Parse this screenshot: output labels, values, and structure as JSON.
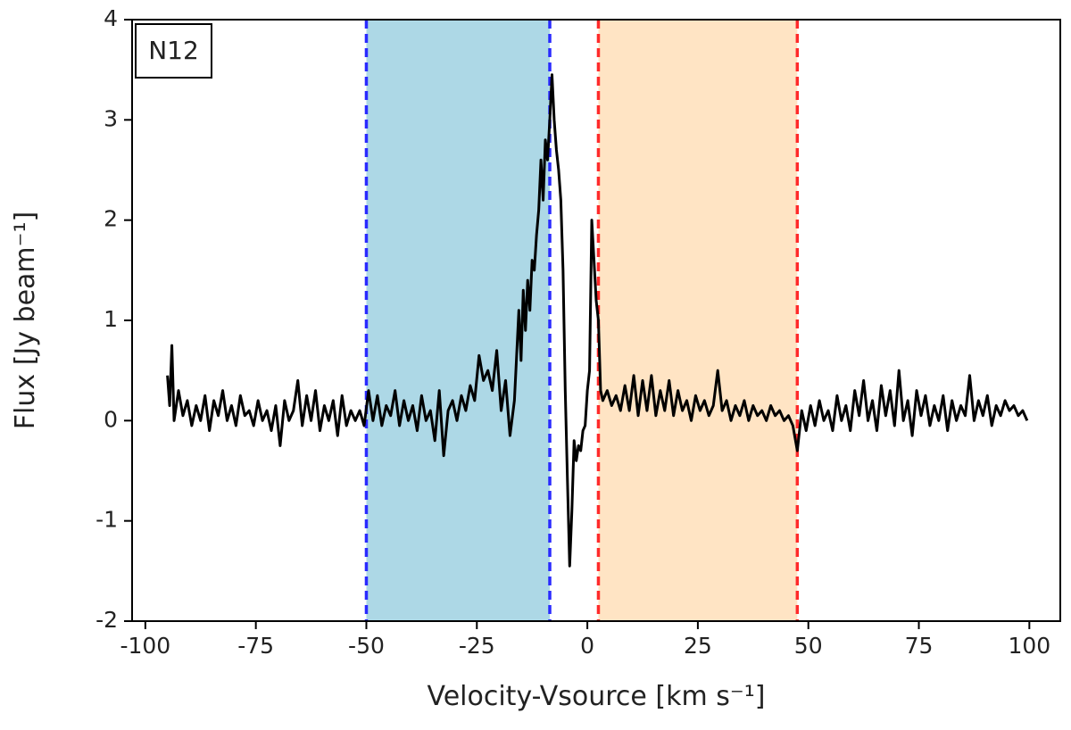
{
  "chart_data": {
    "type": "line",
    "annotation": "N12",
    "xlabel": "Velocity-Vsource [km s⁻¹]",
    "ylabel": "Flux [Jy beam⁻¹]",
    "xlim": [
      -103,
      107
    ],
    "ylim": [
      -2,
      4
    ],
    "xticks": [
      -100,
      -75,
      -50,
      -25,
      0,
      25,
      50,
      75,
      100
    ],
    "yticks": [
      -2,
      -1,
      0,
      1,
      2,
      3,
      4
    ],
    "grid": false,
    "spans": [
      {
        "xlim": [
          -50,
          -8.5
        ],
        "color": "#add8e6",
        "line_color": "#2a2aff"
      },
      {
        "xlim": [
          2.5,
          47.5
        ],
        "color": "#ffe4c4",
        "line_color": "#ff2a2a"
      }
    ],
    "x": [
      -95,
      -94.5,
      -94,
      -93.5,
      -92.5,
      -91.5,
      -90.5,
      -89.5,
      -88.5,
      -87.5,
      -86.5,
      -85.5,
      -84.5,
      -83.5,
      -82.5,
      -81.5,
      -80.5,
      -79.5,
      -78.5,
      -77.5,
      -76.5,
      -75.5,
      -74.5,
      -73.5,
      -72.5,
      -71.5,
      -70.5,
      -69.5,
      -68.5,
      -67.5,
      -66.5,
      -65.5,
      -64.5,
      -63.5,
      -62.5,
      -61.5,
      -60.5,
      -59.5,
      -58.5,
      -57.5,
      -56.5,
      -55.5,
      -54.5,
      -53.5,
      -52.5,
      -51.5,
      -50.5,
      -49.5,
      -48.5,
      -47.5,
      -46.5,
      -45.5,
      -44.5,
      -43.5,
      -42.5,
      -41.5,
      -40.5,
      -39.5,
      -38.5,
      -37.5,
      -36.5,
      -35.5,
      -34.5,
      -33.5,
      -32.5,
      -31.5,
      -30.5,
      -29.5,
      -28.5,
      -27.5,
      -26.5,
      -25.5,
      -24.5,
      -23.5,
      -22.5,
      -21.5,
      -20.5,
      -19.5,
      -18.5,
      -17.5,
      -16.5,
      -15.5,
      -15,
      -14.5,
      -14,
      -13.5,
      -13,
      -12.5,
      -12,
      -11.5,
      -11,
      -10.5,
      -10,
      -9.5,
      -9,
      -8.5,
      -8,
      -7.5,
      -7,
      -6.5,
      -6,
      -5.5,
      -5,
      -4.5,
      -4,
      -3.5,
      -3,
      -2.5,
      -2,
      -1.5,
      -1,
      -0.5,
      0,
      0.5,
      1,
      1.5,
      2,
      2.5,
      3,
      3.5,
      4.5,
      5.5,
      6.5,
      7.5,
      8.5,
      9.5,
      10.5,
      11.5,
      12.5,
      13.5,
      14.5,
      15.5,
      16.5,
      17.5,
      18.5,
      19.5,
      20.5,
      21.5,
      22.5,
      23.5,
      24.5,
      25.5,
      26.5,
      27.5,
      28.5,
      29.5,
      30.5,
      31.5,
      32.5,
      33.5,
      34.5,
      35.5,
      36.5,
      37.5,
      38.5,
      39.5,
      40.5,
      41.5,
      42.5,
      43.5,
      44.5,
      45.5,
      46.5,
      47.5,
      48.5,
      49.5,
      50.5,
      51.5,
      52.5,
      53.5,
      54.5,
      55.5,
      56.5,
      57.5,
      58.5,
      59.5,
      60.5,
      61.5,
      62.5,
      63.5,
      64.5,
      65.5,
      66.5,
      67.5,
      68.5,
      69.5,
      70.5,
      71.5,
      72.5,
      73.5,
      74.5,
      75.5,
      76.5,
      77.5,
      78.5,
      79.5,
      80.5,
      81.5,
      82.5,
      83.5,
      84.5,
      85.5,
      86.5,
      87.5,
      88.5,
      89.5,
      90.5,
      91.5,
      92.5,
      93.5,
      94.5,
      95.5,
      96.5,
      97.5,
      98.5,
      99.5
    ],
    "series": [
      {
        "color": "#000000",
        "values": [
          0.45,
          0.15,
          0.75,
          0.0,
          0.3,
          0.05,
          0.2,
          -0.05,
          0.15,
          0.0,
          0.25,
          -0.1,
          0.2,
          0.05,
          0.3,
          0.0,
          0.15,
          -0.05,
          0.25,
          0.05,
          0.1,
          -0.05,
          0.2,
          0.0,
          0.1,
          -0.1,
          0.15,
          -0.25,
          0.2,
          0.0,
          0.1,
          0.4,
          -0.05,
          0.25,
          0.0,
          0.3,
          -0.1,
          0.15,
          0.0,
          0.2,
          -0.15,
          0.25,
          -0.05,
          0.1,
          0.0,
          0.1,
          -0.05,
          0.3,
          0.0,
          0.25,
          -0.05,
          0.15,
          0.05,
          0.3,
          -0.05,
          0.2,
          0.0,
          0.15,
          -0.1,
          0.25,
          0.0,
          0.1,
          -0.2,
          0.3,
          -0.35,
          0.1,
          0.2,
          0.0,
          0.25,
          0.1,
          0.35,
          0.2,
          0.65,
          0.4,
          0.5,
          0.3,
          0.7,
          0.1,
          0.4,
          -0.15,
          0.2,
          1.1,
          0.6,
          1.3,
          0.9,
          1.4,
          1.1,
          1.6,
          1.5,
          1.85,
          2.1,
          2.6,
          2.2,
          2.8,
          2.6,
          3.0,
          3.45,
          3.0,
          2.7,
          2.5,
          2.2,
          1.5,
          0.3,
          -0.6,
          -1.45,
          -0.9,
          -0.2,
          -0.4,
          -0.25,
          -0.3,
          -0.1,
          -0.05,
          0.3,
          0.5,
          2.0,
          1.6,
          1.2,
          1.0,
          0.3,
          0.2,
          0.3,
          0.15,
          0.25,
          0.1,
          0.35,
          0.1,
          0.45,
          0.05,
          0.4,
          0.1,
          0.45,
          0.05,
          0.3,
          0.1,
          0.4,
          0.05,
          0.3,
          0.1,
          0.2,
          0.0,
          0.25,
          0.1,
          0.2,
          0.05,
          0.15,
          0.5,
          0.1,
          0.2,
          0.0,
          0.15,
          0.05,
          0.2,
          0.0,
          0.15,
          0.05,
          0.1,
          0.0,
          0.15,
          0.05,
          0.1,
          0.0,
          0.05,
          -0.05,
          -0.3,
          0.1,
          -0.1,
          0.15,
          -0.05,
          0.2,
          0.0,
          0.1,
          -0.1,
          0.25,
          0.0,
          0.15,
          -0.1,
          0.3,
          0.05,
          0.4,
          0.0,
          0.2,
          -0.1,
          0.35,
          0.05,
          0.3,
          -0.05,
          0.5,
          0.0,
          0.2,
          -0.15,
          0.3,
          0.05,
          0.25,
          -0.05,
          0.15,
          0.0,
          0.25,
          -0.1,
          0.2,
          0.0,
          0.15,
          0.05,
          0.45,
          0.0,
          0.2,
          0.05,
          0.25,
          -0.05,
          0.15,
          0.05,
          0.2,
          0.1,
          0.15,
          0.05,
          0.1,
          0.0
        ]
      }
    ]
  }
}
